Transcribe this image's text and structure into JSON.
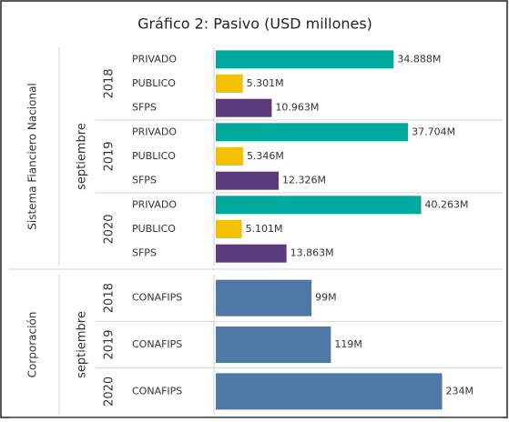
{
  "title": "Gráfico 2: Pasivo (USD millones)",
  "chart_data": [
    {
      "type": "bar",
      "orientation": "horizontal",
      "row_label": "Sistema Fianciero Nacional",
      "group_label": "septiembre",
      "xlim": [
        0,
        55000
      ],
      "groups": [
        {
          "name": "2018",
          "categories": [
            "PRIVADO",
            "PUBLICO",
            "SFPS"
          ],
          "colors": [
            "#00a99d",
            "#f5c000",
            "#5b3b7b"
          ],
          "values": [
            34888,
            5301,
            10963
          ],
          "value_labels": [
            "34.888M",
            "5.301M",
            "10.963M"
          ]
        },
        {
          "name": "2019",
          "categories": [
            "PRIVADO",
            "PUBLICO",
            "SFPS"
          ],
          "colors": [
            "#00a99d",
            "#f5c000",
            "#5b3b7b"
          ],
          "values": [
            37704,
            5346,
            12326
          ],
          "value_labels": [
            "37.704M",
            "5.346M",
            "12.326M"
          ]
        },
        {
          "name": "2020",
          "categories": [
            "PRIVADO",
            "PUBLICO",
            "SFPS"
          ],
          "colors": [
            "#00a99d",
            "#f5c000",
            "#5b3b7b"
          ],
          "values": [
            40263,
            5101,
            13863
          ],
          "value_labels": [
            "40.263M",
            "5.101M",
            "13.863M"
          ]
        }
      ]
    },
    {
      "type": "bar",
      "orientation": "horizontal",
      "row_label": "Corporación",
      "group_label": "septiembre",
      "xlim": [
        0,
        290
      ],
      "groups": [
        {
          "name": "2018",
          "categories": [
            "CONAFIPS"
          ],
          "colors": [
            "#4e79a7"
          ],
          "values": [
            99
          ],
          "value_labels": [
            "99M"
          ]
        },
        {
          "name": "2019",
          "categories": [
            "CONAFIPS"
          ],
          "colors": [
            "#4e79a7"
          ],
          "values": [
            119
          ],
          "value_labels": [
            "119M"
          ]
        },
        {
          "name": "2020",
          "categories": [
            "CONAFIPS"
          ],
          "colors": [
            "#4e79a7"
          ],
          "values": [
            234
          ],
          "value_labels": [
            "234M"
          ]
        }
      ]
    }
  ]
}
